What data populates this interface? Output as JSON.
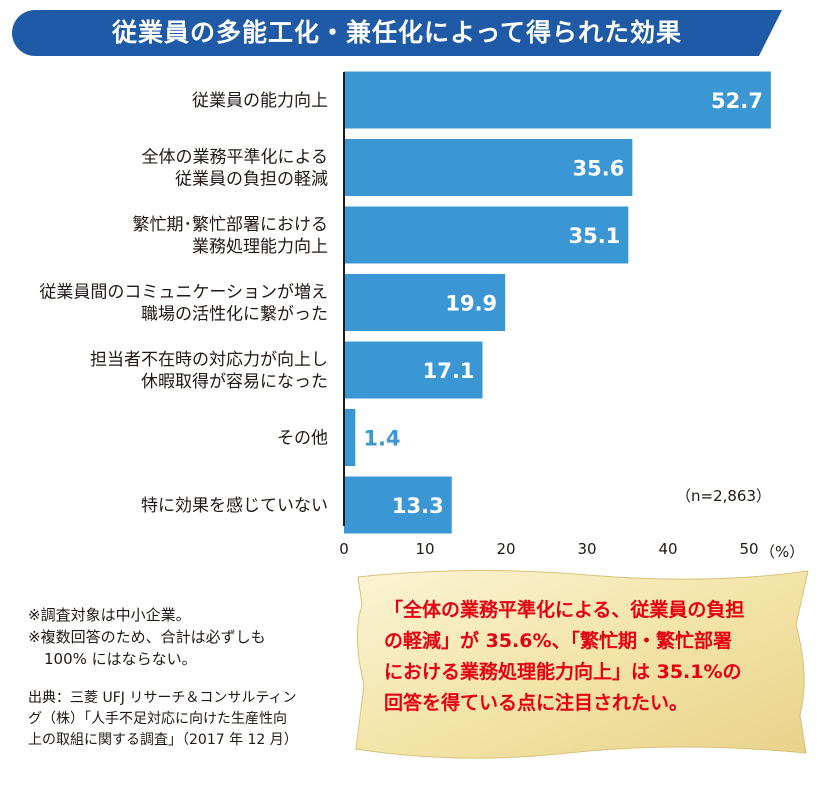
{
  "title": "従業員の多能工化・兼任化によって得られた効果",
  "chart_data": {
    "type": "bar",
    "orientation": "horizontal",
    "categories": [
      [
        "従業員の能力向上"
      ],
      [
        "全体の業務平準化による",
        "従業員の負担の軽減"
      ],
      [
        "繁忙期･繁忙部署における",
        "業務処理能力向上"
      ],
      [
        "従業員間のコミュニケーションが増え",
        "職場の活性化に繋がった"
      ],
      [
        "担当者不在時の対応力が向上し",
        "休暇取得が容易になった"
      ],
      [
        "その他"
      ],
      [
        "特に効果を感じていない"
      ]
    ],
    "values": [
      52.7,
      35.6,
      35.1,
      19.9,
      17.1,
      1.4,
      13.3
    ],
    "value_labels": [
      "52.7",
      "35.6",
      "35.1",
      "19.9",
      "17.1",
      "1.4",
      "13.3"
    ],
    "xlim": [
      0,
      50
    ],
    "xticks": [
      "0",
      "10",
      "20",
      "30",
      "40",
      "50"
    ],
    "bar_color": "#3b97d3",
    "label_color_inside": "#ffffff",
    "label_color_outside": "#3b97d3",
    "sample_size": "（n=2,863）",
    "unit": "（%）"
  },
  "notes": [
    "※調査対象は中小企業。",
    "※複数回答のため、合計は必ずしも",
    "100% にはならない。"
  ],
  "source": [
    "出典：三菱 UFJ リサーチ＆コンサルティン",
    "グ（株）「人手不足対応に向けた生産性向",
    "上の取組に関する調査」（2017 年 12 月）"
  ],
  "callout": [
    "「全体の業務平準化による、従業員の負担",
    "の軽減」が 35.6%、「繁忙期・繁忙部署",
    "における業務処理能力向上」は 35.1%の",
    "回答を得ている点に注目されたい。"
  ],
  "colors": {
    "banner": "#1f5aa6",
    "callout_text": "#e60012",
    "callout_paper": "#f6ecc2"
  }
}
